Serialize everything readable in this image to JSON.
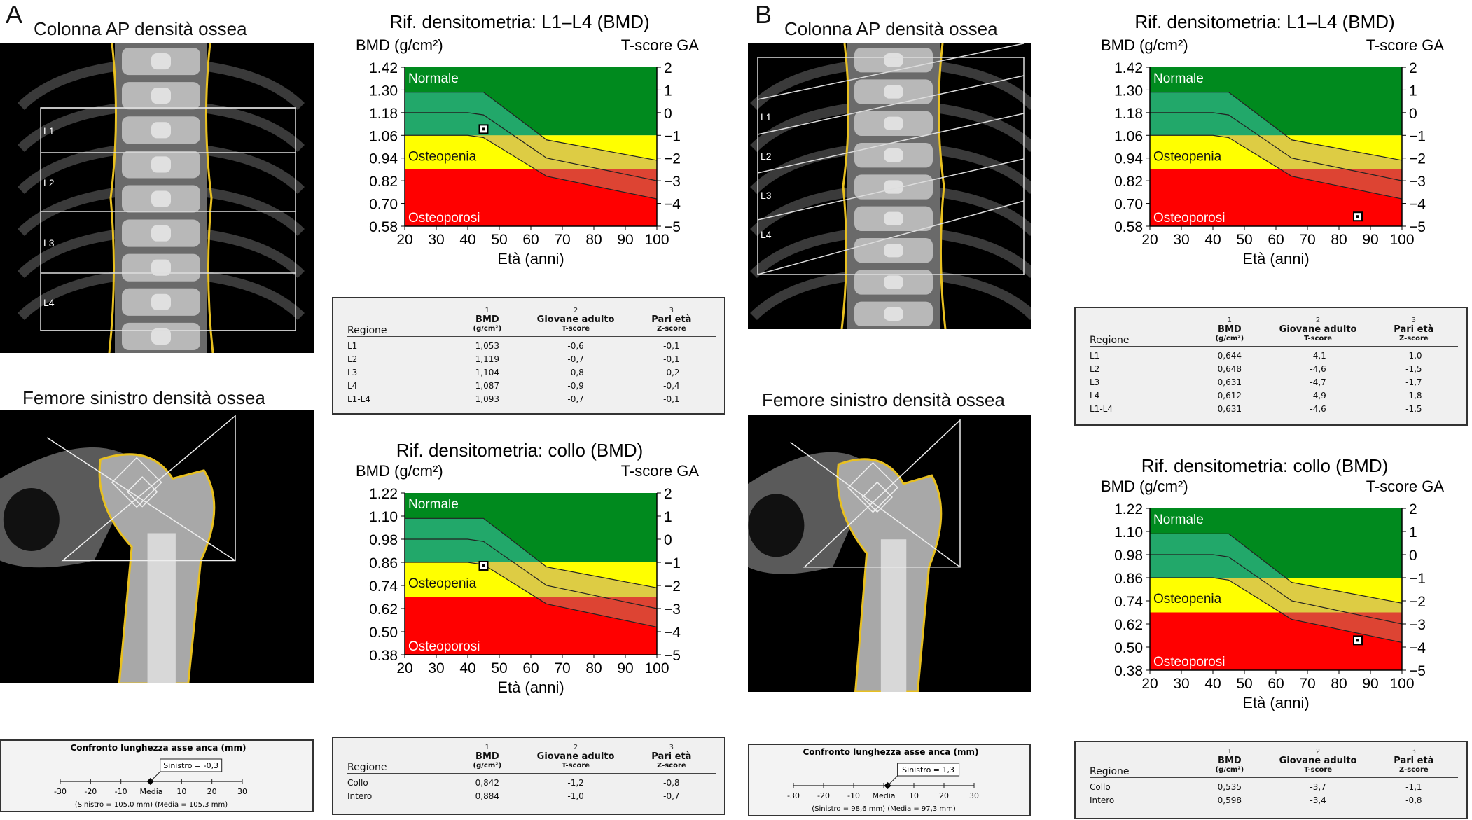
{
  "panels": [
    {
      "letter": "A",
      "spine_title": "Colonna AP densità ossea",
      "spine_labels": [
        "L1",
        "L2",
        "L3",
        "L4"
      ],
      "femur_title": "Femore sinistro densità ossea",
      "lumbar_chart": {
        "title": "Rif. densitometria: L1–L4 (BMD)",
        "ylabel_left": "BMD (g/cm²)",
        "ylabel_right": "T-score GA",
        "xlabel": "Età (anni)",
        "y_ticks": [
          "1.42",
          "1.30",
          "1.18",
          "1.06",
          "0.94",
          "0.82",
          "0.70",
          "0.58"
        ],
        "t_ticks": [
          "2",
          "1",
          "0",
          "−1",
          "−2",
          "−3",
          "−4",
          "−5"
        ],
        "x_ticks": [
          "20",
          "30",
          "40",
          "50",
          "60",
          "70",
          "80",
          "90",
          "100"
        ],
        "zones": [
          "Normale",
          "Osteopenia",
          "Osteoporosi"
        ],
        "patient_point": {
          "age": 45,
          "bmd": 1.093
        }
      },
      "lumbar_table": {
        "col_nums": [
          "1",
          "2",
          "3"
        ],
        "region_header": "Regione",
        "headers": [
          "BMD",
          "Giovane adulto",
          "Pari età"
        ],
        "subheaders": [
          "(g/cm²)",
          "T-score",
          "Z-score"
        ],
        "rows": [
          [
            "L1",
            "1,053",
            "-0,6",
            "-0,1"
          ],
          [
            "L2",
            "1,119",
            "-0,7",
            "-0,1"
          ],
          [
            "L3",
            "1,104",
            "-0,8",
            "-0,2"
          ],
          [
            "L4",
            "1,087",
            "-0,9",
            "-0,4"
          ],
          [
            "L1-L4",
            "1,093",
            "-0,7",
            "-0,1"
          ]
        ]
      },
      "neck_chart": {
        "title": "Rif. densitometria: collo (BMD)",
        "ylabel_left": "BMD (g/cm²)",
        "ylabel_right": "T-score GA",
        "xlabel": "Età (anni)",
        "y_ticks": [
          "1.22",
          "1.10",
          "0.98",
          "0.86",
          "0.74",
          "0.62",
          "0.50",
          "0.38"
        ],
        "t_ticks": [
          "2",
          "1",
          "0",
          "−1",
          "−2",
          "−3",
          "−4",
          "−5"
        ],
        "x_ticks": [
          "20",
          "30",
          "40",
          "50",
          "60",
          "70",
          "80",
          "90",
          "100"
        ],
        "zones": [
          "Normale",
          "Osteopenia",
          "Osteoporosi"
        ],
        "patient_point": {
          "age": 45,
          "bmd": 0.842
        }
      },
      "neck_table": {
        "col_nums": [
          "1",
          "2",
          "3"
        ],
        "region_header": "Regione",
        "headers": [
          "BMD",
          "Giovane adulto",
          "Pari età"
        ],
        "subheaders": [
          "(g/cm²)",
          "T-score",
          "Z-score"
        ],
        "rows": [
          [
            "Collo",
            "0,842",
            "-1,2",
            "-0,8"
          ],
          [
            "Intero",
            "0,884",
            "-1,0",
            "-0,7"
          ]
        ]
      },
      "axis_comparison": {
        "title": "Confronto lunghezza asse anca (mm)",
        "marker_label": "Sinistro = -0,3",
        "ticks": [
          "-30",
          "-20",
          "-10",
          "Media",
          "10",
          "20",
          "30"
        ],
        "footer": "(Sinistro = 105,0 mm)  (Media = 105,3 mm)",
        "value": -0.3
      }
    },
    {
      "letter": "B",
      "spine_title": "Colonna AP densità ossea",
      "spine_labels": [
        "L1",
        "L2",
        "L3",
        "L4"
      ],
      "femur_title": "Femore sinistro densità ossea",
      "lumbar_chart": {
        "title": "Rif. densitometria: L1–L4 (BMD)",
        "ylabel_left": "BMD (g/cm²)",
        "ylabel_right": "T-score GA",
        "xlabel": "Età (anni)",
        "y_ticks": [
          "1.42",
          "1.30",
          "1.18",
          "1.06",
          "0.94",
          "0.82",
          "0.70",
          "0.58"
        ],
        "t_ticks": [
          "2",
          "1",
          "0",
          "−1",
          "−2",
          "−3",
          "−4",
          "−5"
        ],
        "x_ticks": [
          "20",
          "30",
          "40",
          "50",
          "60",
          "70",
          "80",
          "90",
          "100"
        ],
        "zones": [
          "Normale",
          "Osteopenia",
          "Osteoporosi"
        ],
        "patient_point": {
          "age": 86,
          "bmd": 0.631
        }
      },
      "lumbar_table": {
        "col_nums": [
          "1",
          "2",
          "3"
        ],
        "region_header": "Regione",
        "headers": [
          "BMD",
          "Giovane adulto",
          "Pari età"
        ],
        "subheaders": [
          "(g/cm²)",
          "T-score",
          "Z-score"
        ],
        "rows": [
          [
            "L1",
            "0,644",
            "-4,1",
            "-1,0"
          ],
          [
            "L2",
            "0,648",
            "-4,6",
            "-1,5"
          ],
          [
            "L3",
            "0,631",
            "-4,7",
            "-1,7"
          ],
          [
            "L4",
            "0,612",
            "-4,9",
            "-1,8"
          ],
          [
            "L1-L4",
            "0,631",
            "-4,6",
            "-1,5"
          ]
        ]
      },
      "neck_chart": {
        "title": "Rif. densitometria: collo (BMD)",
        "ylabel_left": "BMD (g/cm²)",
        "ylabel_right": "T-score GA",
        "xlabel": "Età (anni)",
        "y_ticks": [
          "1.22",
          "1.10",
          "0.98",
          "0.86",
          "0.74",
          "0.62",
          "0.50",
          "0.38"
        ],
        "t_ticks": [
          "2",
          "1",
          "0",
          "−1",
          "−2",
          "−3",
          "−4",
          "−5"
        ],
        "x_ticks": [
          "20",
          "30",
          "40",
          "50",
          "60",
          "70",
          "80",
          "90",
          "100"
        ],
        "zones": [
          "Normale",
          "Osteopenia",
          "Osteoporosi"
        ],
        "patient_point": {
          "age": 86,
          "bmd": 0.535
        }
      },
      "neck_table": {
        "col_nums": [
          "1",
          "2",
          "3"
        ],
        "region_header": "Regione",
        "headers": [
          "BMD",
          "Giovane adulto",
          "Pari età"
        ],
        "subheaders": [
          "(g/cm²)",
          "T-score",
          "Z-score"
        ],
        "rows": [
          [
            "Collo",
            "0,535",
            "-3,7",
            "-1,1"
          ],
          [
            "Intero",
            "0,598",
            "-3,4",
            "-0,8"
          ]
        ]
      },
      "axis_comparison": {
        "title": "Confronto lunghezza asse anca (mm)",
        "marker_label": "Sinistro = 1,3",
        "ticks": [
          "-30",
          "-20",
          "-10",
          "Media",
          "10",
          "20",
          "30"
        ],
        "footer": "(Sinistro = 98,6 mm)  (Media = 97,3 mm)",
        "value": 1.3
      }
    }
  ],
  "colors": {
    "normal": "#008a1e",
    "normal_band": "#22a86a",
    "osteopenia": "#ffff00",
    "osteopenia_band": "#ddcc44",
    "osteoporosis": "#ff0000",
    "osteoporosis_band": "#dd4433",
    "bone_outline": "#e8c020"
  }
}
